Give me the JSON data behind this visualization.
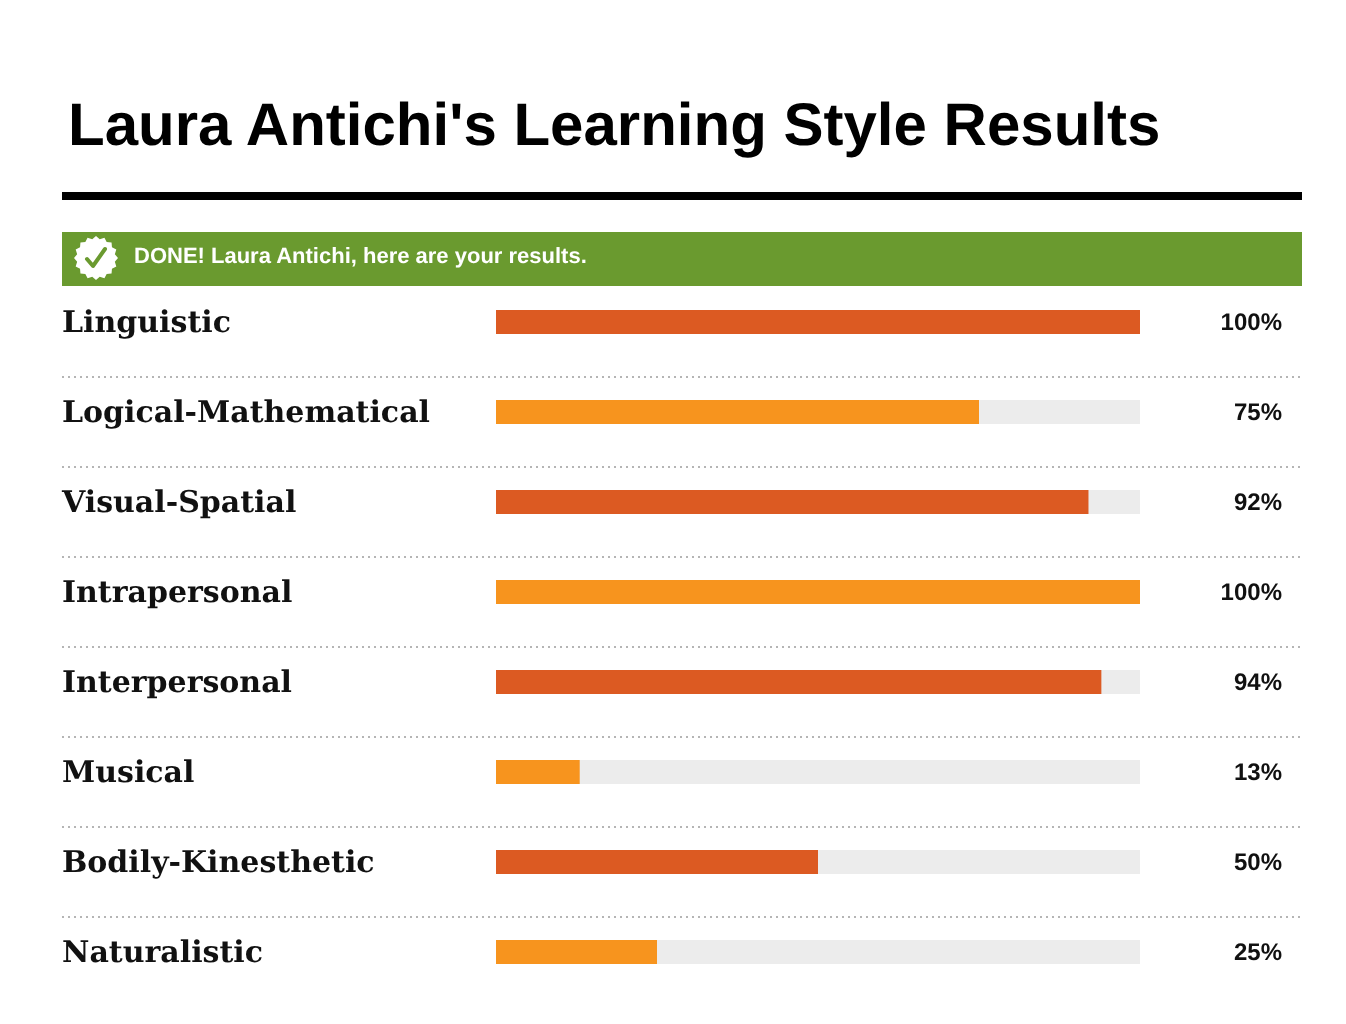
{
  "chart_data": {
    "type": "bar",
    "orientation": "horizontal",
    "title": "Laura Antichi's Learning Style Results",
    "annotations": [
      "DONE! Laura Antichi, here are your results."
    ],
    "categories": [
      "Linguistic",
      "Logical-Mathematical",
      "Visual-Spatial",
      "Intrapersonal",
      "Interpersonal",
      "Musical",
      "Bodily-Kinesthetic",
      "Naturalistic"
    ],
    "values": [
      100,
      75,
      92,
      100,
      94,
      13,
      50,
      25
    ],
    "colors": [
      "#dc5a22",
      "#f7941e",
      "#dc5a22",
      "#f7941e",
      "#dc5a22",
      "#f7941e",
      "#dc5a22",
      "#f7941e"
    ],
    "value_labels": [
      "100%",
      "75%",
      "92%",
      "100%",
      "94%",
      "13%",
      "50%",
      "25%"
    ],
    "xlim": [
      0,
      100
    ],
    "tick_labels": "y",
    "grid": "y"
  }
}
